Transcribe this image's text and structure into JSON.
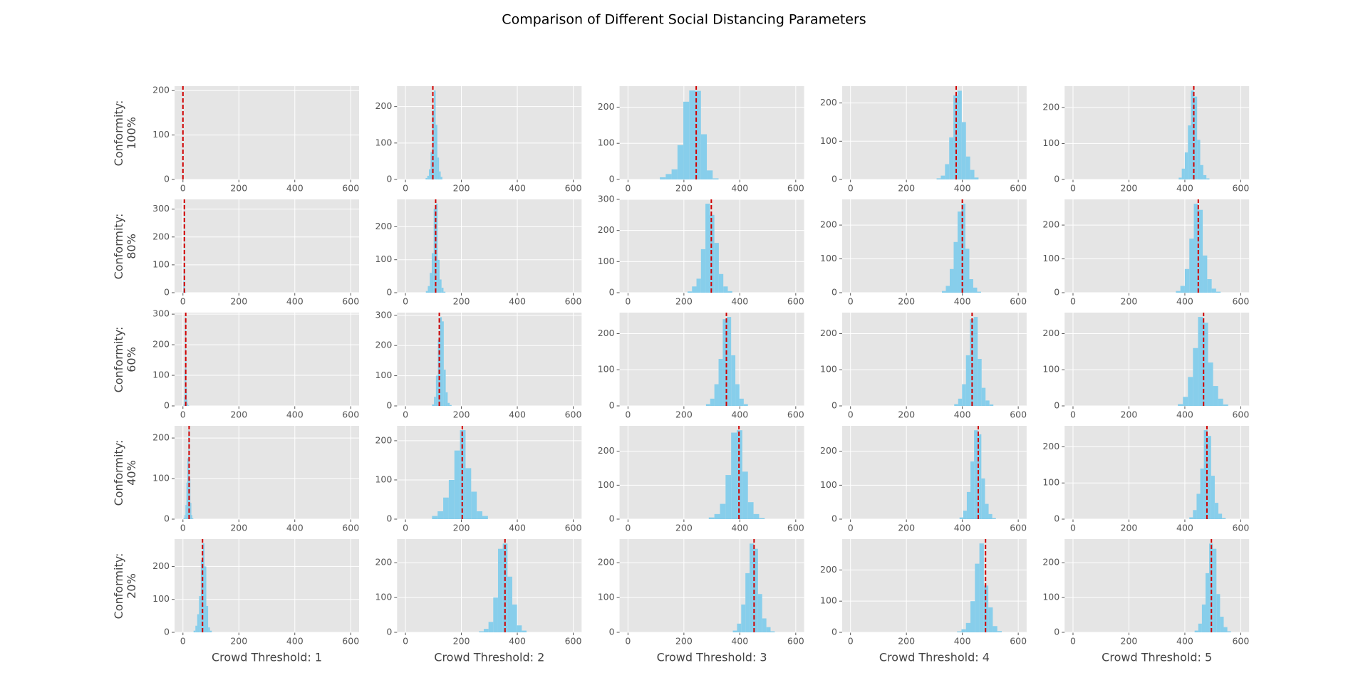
{
  "title": "Comparison of Different Social Distancing Parameters",
  "chart_data": [
    {
      "type": "histogram",
      "ylabel": "Conformity:\n100%",
      "bins": [
        -0.5,
        -0.4,
        -0.3,
        -0.2,
        -0.1,
        0,
        0.1,
        0.2,
        0.3,
        0.4,
        0.5
      ],
      "values": [
        0,
        0,
        0,
        0,
        0,
        200,
        0,
        0,
        0,
        0
      ],
      "mean": 0,
      "color": "#87ceeb",
      "mean_color": "#d00000",
      "xlim": [
        -30,
        630
      ],
      "xticks": [
        0,
        200,
        400,
        600
      ],
      "ylim": [
        0,
        210
      ],
      "yticks": [
        0,
        100,
        200
      ],
      "grid": true
    },
    {
      "type": "histogram",
      "bins": [
        72,
        78,
        84,
        90,
        96,
        102,
        108,
        114,
        120,
        126,
        132
      ],
      "values": [
        4,
        10,
        28,
        75,
        190,
        244,
        150,
        60,
        22,
        7
      ],
      "mean": 98,
      "color": "#87ceeb",
      "mean_color": "#d00000",
      "xlim": [
        -30,
        630
      ],
      "xticks": [
        0,
        200,
        400,
        600
      ],
      "ylim": [
        0,
        256
      ],
      "yticks": [
        0,
        100,
        200
      ],
      "grid": true
    },
    {
      "type": "histogram",
      "bins": [
        114,
        135,
        156,
        177,
        198,
        219,
        240,
        261,
        282,
        303,
        324
      ],
      "values": [
        6,
        15,
        28,
        95,
        215,
        246,
        245,
        125,
        25,
        3
      ],
      "mean": 244,
      "color": "#87ceeb",
      "mean_color": "#d00000",
      "xlim": [
        -30,
        630
      ],
      "xticks": [
        0,
        200,
        400,
        600
      ],
      "ylim": [
        0,
        258
      ],
      "yticks": [
        0,
        100,
        200
      ],
      "grid": true
    },
    {
      "type": "histogram",
      "bins": [
        308,
        323,
        338,
        353,
        368,
        383,
        398,
        413,
        428,
        443,
        458
      ],
      "values": [
        3,
        10,
        40,
        110,
        220,
        232,
        150,
        60,
        25,
        5
      ],
      "mean": 378,
      "color": "#87ceeb",
      "mean_color": "#d00000",
      "xlim": [
        -30,
        630
      ],
      "xticks": [
        0,
        200,
        400,
        600
      ],
      "ylim": [
        0,
        244
      ],
      "yticks": [
        0,
        100,
        200
      ],
      "grid": true
    },
    {
      "type": "histogram",
      "bins": [
        378,
        389,
        400,
        411,
        422,
        433,
        444,
        455,
        466,
        477,
        488
      ],
      "values": [
        5,
        30,
        75,
        150,
        247,
        230,
        110,
        40,
        12,
        3
      ],
      "mean": 432,
      "color": "#87ceeb",
      "mean_color": "#d00000",
      "xlim": [
        -30,
        630
      ],
      "xticks": [
        0,
        200,
        400,
        600
      ],
      "ylim": [
        0,
        259
      ],
      "yticks": [
        0,
        100,
        200
      ],
      "grid": true
    },
    {
      "type": "histogram",
      "ylabel": "Conformity:\n80%",
      "bins": [
        0,
        1.2,
        2.4,
        3.6,
        4.8,
        6,
        7.2,
        8.4,
        9.6,
        10.8,
        12
      ],
      "values": [
        5,
        40,
        100,
        319,
        90,
        30,
        10,
        3,
        1,
        1
      ],
      "mean": 5,
      "color": "#87ceeb",
      "mean_color": "#d00000",
      "xlim": [
        -30,
        630
      ],
      "xticks": [
        0,
        200,
        400,
        600
      ],
      "ylim": [
        0,
        335
      ],
      "yticks": [
        0,
        100,
        200,
        300
      ],
      "grid": true
    },
    {
      "type": "histogram",
      "bins": [
        73,
        80,
        87,
        94,
        101,
        108,
        115,
        122,
        129,
        136,
        143
      ],
      "values": [
        5,
        20,
        60,
        120,
        255,
        270,
        100,
        40,
        15,
        3
      ],
      "mean": 108,
      "color": "#87ceeb",
      "mean_color": "#d00000",
      "xlim": [
        -30,
        630
      ],
      "xticks": [
        0,
        200,
        400,
        600
      ],
      "ylim": [
        0,
        283
      ],
      "yticks": [
        0,
        100,
        200
      ],
      "grid": true
    },
    {
      "type": "histogram",
      "bins": [
        213,
        229,
        245,
        261,
        277,
        293,
        309,
        325,
        341,
        357,
        373
      ],
      "values": [
        4,
        20,
        45,
        140,
        286,
        250,
        160,
        60,
        20,
        5
      ],
      "mean": 298,
      "color": "#87ceeb",
      "mean_color": "#d00000",
      "xlim": [
        -30,
        630
      ],
      "xticks": [
        0,
        200,
        400,
        600
      ],
      "ylim": [
        0,
        300
      ],
      "yticks": [
        0,
        100,
        200,
        300
      ],
      "grid": true
    },
    {
      "type": "histogram",
      "bins": [
        327,
        341,
        355,
        369,
        383,
        397,
        411,
        425,
        439,
        453,
        467
      ],
      "values": [
        5,
        20,
        70,
        150,
        240,
        263,
        130,
        40,
        15,
        3
      ],
      "mean": 400,
      "color": "#87ceeb",
      "mean_color": "#d00000",
      "xlim": [
        -30,
        630
      ],
      "xticks": [
        0,
        200,
        400,
        600
      ],
      "ylim": [
        0,
        276
      ],
      "yticks": [
        0,
        100,
        200
      ],
      "grid": true
    },
    {
      "type": "histogram",
      "bins": [
        368,
        384,
        400,
        416,
        432,
        448,
        464,
        480,
        496,
        512,
        528
      ],
      "values": [
        5,
        20,
        70,
        160,
        263,
        245,
        110,
        40,
        12,
        3
      ],
      "mean": 448,
      "color": "#87ceeb",
      "mean_color": "#d00000",
      "xlim": [
        -30,
        630
      ],
      "xticks": [
        0,
        200,
        400,
        600
      ],
      "ylim": [
        0,
        276
      ],
      "yticks": [
        0,
        100,
        200
      ],
      "grid": true
    },
    {
      "type": "histogram",
      "ylabel": "Conformity:\n60%",
      "bins": [
        2,
        4,
        6,
        8,
        10,
        12,
        14,
        16,
        18,
        20,
        22
      ],
      "values": [
        5,
        30,
        120,
        290,
        150,
        60,
        20,
        8,
        3,
        1
      ],
      "mean": 10,
      "color": "#87ceeb",
      "mean_color": "#d00000",
      "xlim": [
        -30,
        630
      ],
      "xticks": [
        0,
        200,
        400,
        600
      ],
      "ylim": [
        0,
        305
      ],
      "yticks": [
        0,
        100,
        200,
        300
      ],
      "grid": true
    },
    {
      "type": "histogram",
      "bins": [
        95,
        102,
        109,
        116,
        123,
        130,
        137,
        144,
        151,
        158,
        165
      ],
      "values": [
        5,
        30,
        100,
        220,
        294,
        280,
        120,
        45,
        10,
        3
      ],
      "mean": 121,
      "color": "#87ceeb",
      "mean_color": "#d00000",
      "xlim": [
        -30,
        630
      ],
      "xticks": [
        0,
        200,
        400,
        600
      ],
      "ylim": [
        0,
        309
      ],
      "yticks": [
        0,
        100,
        200,
        300
      ],
      "grid": true
    },
    {
      "type": "histogram",
      "bins": [
        279,
        294,
        309,
        324,
        339,
        354,
        369,
        384,
        399,
        414,
        429
      ],
      "values": [
        5,
        20,
        60,
        130,
        240,
        246,
        140,
        60,
        20,
        5
      ],
      "mean": 352,
      "color": "#87ceeb",
      "mean_color": "#d00000",
      "xlim": [
        -30,
        630
      ],
      "xticks": [
        0,
        200,
        400,
        600
      ],
      "ylim": [
        0,
        258
      ],
      "yticks": [
        0,
        100,
        200
      ],
      "grid": true
    },
    {
      "type": "histogram",
      "bins": [
        371,
        385,
        399,
        413,
        427,
        441,
        455,
        469,
        483,
        497,
        511
      ],
      "values": [
        5,
        20,
        60,
        140,
        240,
        246,
        130,
        50,
        15,
        4
      ],
      "mean": 435,
      "color": "#87ceeb",
      "mean_color": "#d00000",
      "xlim": [
        -30,
        630
      ],
      "xticks": [
        0,
        200,
        400,
        600
      ],
      "ylim": [
        0,
        258
      ],
      "yticks": [
        0,
        100,
        200
      ],
      "grid": true
    },
    {
      "type": "histogram",
      "bins": [
        375,
        393,
        411,
        429,
        447,
        465,
        483,
        501,
        519,
        537,
        555
      ],
      "values": [
        5,
        25,
        80,
        160,
        246,
        230,
        120,
        55,
        20,
        4
      ],
      "mean": 467,
      "color": "#87ceeb",
      "mean_color": "#d00000",
      "xlim": [
        -30,
        630
      ],
      "xticks": [
        0,
        200,
        400,
        600
      ],
      "ylim": [
        0,
        258
      ],
      "yticks": [
        0,
        100,
        200
      ],
      "grid": true
    },
    {
      "type": "histogram",
      "ylabel": "Conformity:\n40%",
      "bins": [
        2,
        5.5,
        9,
        12.5,
        16,
        19.5,
        23,
        26.5,
        30,
        33.5,
        37
      ],
      "values": [
        3,
        10,
        35,
        90,
        150,
        219,
        100,
        40,
        10,
        2
      ],
      "mean": 22,
      "color": "#87ceeb",
      "mean_color": "#d00000",
      "xlim": [
        -30,
        630
      ],
      "xticks": [
        0,
        200,
        400,
        600
      ],
      "ylim": [
        0,
        230
      ],
      "yticks": [
        0,
        100,
        200
      ],
      "grid": true
    },
    {
      "type": "histogram",
      "bins": [
        95,
        115,
        135,
        155,
        175,
        195,
        215,
        235,
        255,
        275,
        295
      ],
      "values": [
        8,
        20,
        55,
        100,
        175,
        227,
        130,
        70,
        20,
        8
      ],
      "mean": 203,
      "color": "#87ceeb",
      "mean_color": "#d00000",
      "xlim": [
        -30,
        630
      ],
      "xticks": [
        0,
        200,
        400,
        600
      ],
      "ylim": [
        0,
        238
      ],
      "yticks": [
        0,
        100,
        200
      ],
      "grid": true
    },
    {
      "type": "histogram",
      "bins": [
        289,
        309,
        329,
        349,
        369,
        389,
        409,
        429,
        449,
        469,
        489
      ],
      "values": [
        5,
        15,
        45,
        130,
        255,
        262,
        140,
        50,
        15,
        3
      ],
      "mean": 397,
      "color": "#87ceeb",
      "mean_color": "#d00000",
      "xlim": [
        -30,
        630
      ],
      "xticks": [
        0,
        200,
        400,
        600
      ],
      "ylim": [
        0,
        275
      ],
      "yticks": [
        0,
        100,
        200
      ],
      "grid": true
    },
    {
      "type": "histogram",
      "bins": [
        390,
        403,
        416,
        429,
        442,
        455,
        468,
        481,
        494,
        507,
        520
      ],
      "values": [
        5,
        25,
        80,
        170,
        262,
        250,
        120,
        45,
        15,
        3
      ],
      "mean": 457,
      "color": "#87ceeb",
      "mean_color": "#d00000",
      "xlim": [
        -30,
        630
      ],
      "xticks": [
        0,
        200,
        400,
        600
      ],
      "ylim": [
        0,
        275
      ],
      "yticks": [
        0,
        100,
        200
      ],
      "grid": true
    },
    {
      "type": "histogram",
      "bins": [
        416,
        429,
        442,
        455,
        468,
        481,
        494,
        507,
        520,
        533,
        546
      ],
      "values": [
        5,
        25,
        70,
        140,
        246,
        230,
        120,
        45,
        15,
        3
      ],
      "mean": 479,
      "color": "#87ceeb",
      "mean_color": "#d00000",
      "xlim": [
        -30,
        630
      ],
      "xticks": [
        0,
        200,
        400,
        600
      ],
      "ylim": [
        0,
        258
      ],
      "yticks": [
        0,
        100,
        200
      ],
      "grid": true
    },
    {
      "type": "histogram",
      "ylabel": "Conformity:\n20%",
      "xlabel": "Crowd Threshold: 1",
      "bins": [
        38,
        44.5,
        51,
        57.5,
        64,
        70.5,
        77,
        83.5,
        90,
        96.5,
        103
      ],
      "values": [
        5,
        20,
        55,
        110,
        220,
        270,
        200,
        80,
        15,
        5
      ],
      "mean": 70,
      "color": "#87ceeb",
      "mean_color": "#d00000",
      "xlim": [
        -30,
        630
      ],
      "xticks": [
        0,
        200,
        400,
        600
      ],
      "ylim": [
        0,
        283
      ],
      "yticks": [
        0,
        100,
        200
      ],
      "grid": true
    },
    {
      "type": "histogram",
      "xlabel": "Crowd Threshold: 2",
      "bins": [
        263,
        280,
        297,
        314,
        331,
        348,
        365,
        382,
        399,
        416,
        433
      ],
      "values": [
        3,
        10,
        30,
        100,
        240,
        255,
        160,
        80,
        20,
        5
      ],
      "mean": 356,
      "color": "#87ceeb",
      "mean_color": "#d00000",
      "xlim": [
        -30,
        630
      ],
      "xticks": [
        0,
        200,
        400,
        600
      ],
      "ylim": [
        0,
        268
      ],
      "yticks": [
        0,
        100,
        200
      ],
      "grid": true
    },
    {
      "type": "histogram",
      "xlabel": "Crowd Threshold: 3",
      "bins": [
        375,
        390,
        405,
        420,
        435,
        450,
        465,
        480,
        495,
        510,
        525
      ],
      "values": [
        5,
        25,
        80,
        170,
        255,
        240,
        110,
        40,
        15,
        3
      ],
      "mean": 451,
      "color": "#87ceeb",
      "mean_color": "#d00000",
      "xlim": [
        -30,
        630
      ],
      "xticks": [
        0,
        200,
        400,
        600
      ],
      "ylim": [
        0,
        268
      ],
      "yticks": [
        0,
        100,
        200
      ],
      "grid": true
    },
    {
      "type": "histogram",
      "xlabel": "Crowd Threshold: 4",
      "bins": [
        381,
        397,
        413,
        429,
        445,
        461,
        477,
        493,
        509,
        525,
        541
      ],
      "values": [
        3,
        10,
        30,
        100,
        220,
        285,
        150,
        80,
        20,
        4
      ],
      "mean": 483,
      "color": "#87ceeb",
      "mean_color": "#d00000",
      "xlim": [
        -30,
        630
      ],
      "xticks": [
        0,
        200,
        400,
        600
      ],
      "ylim": [
        0,
        299
      ],
      "yticks": [
        0,
        100,
        200
      ],
      "grid": true
    },
    {
      "type": "histogram",
      "xlabel": "Crowd Threshold: 5",
      "bins": [
        435,
        448,
        461,
        474,
        487,
        500,
        513,
        526,
        539,
        552,
        565
      ],
      "values": [
        5,
        25,
        80,
        170,
        255,
        240,
        110,
        45,
        15,
        3
      ],
      "mean": 495,
      "color": "#87ceeb",
      "mean_color": "#d00000",
      "xlim": [
        -30,
        630
      ],
      "xticks": [
        0,
        200,
        400,
        600
      ],
      "ylim": [
        0,
        268
      ],
      "yticks": [
        0,
        100,
        200
      ],
      "grid": true
    }
  ]
}
